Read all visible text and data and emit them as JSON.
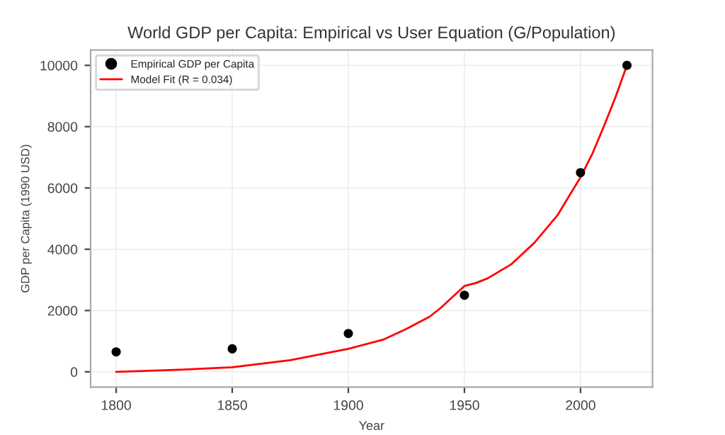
{
  "chart_data": {
    "type": "scatter",
    "title": "World GDP per Capita: Empirical vs User Equation (G/Population)",
    "xlabel": "Year",
    "ylabel": "GDP per Capita (1990 USD)",
    "series": [
      {
        "name": "Empirical GDP per Capita",
        "color": "#000000",
        "marker": "circle",
        "x": [
          1800,
          1850,
          1900,
          1950,
          2000,
          2020
        ],
        "values": [
          650,
          750,
          1250,
          2500,
          6500,
          10000
        ]
      },
      {
        "name": "Model Fit (R = 0.034)",
        "type": "line",
        "color": "#ff0000",
        "marker": "none",
        "line_style": "solid",
        "x": [
          1800,
          1825,
          1850,
          1875,
          1900,
          1915,
          1925,
          1935,
          1940,
          1945,
          1950,
          1955,
          1960,
          1970,
          1980,
          1990,
          2000,
          2005,
          2010,
          2015,
          2020
        ],
        "values": [
          0,
          60,
          150,
          380,
          750,
          1050,
          1400,
          1800,
          2100,
          2450,
          2800,
          2900,
          3050,
          3500,
          4200,
          5100,
          6350,
          7100,
          8000,
          8950,
          10000
        ]
      }
    ],
    "xlim": [
      1789,
      2031
    ],
    "ylim": [
      -500,
      10500
    ],
    "xticks": [
      1800,
      1850,
      1900,
      1950,
      2000
    ],
    "yticks": [
      0,
      2000,
      4000,
      6000,
      8000,
      10000
    ],
    "grid": true,
    "legend": "top left"
  }
}
